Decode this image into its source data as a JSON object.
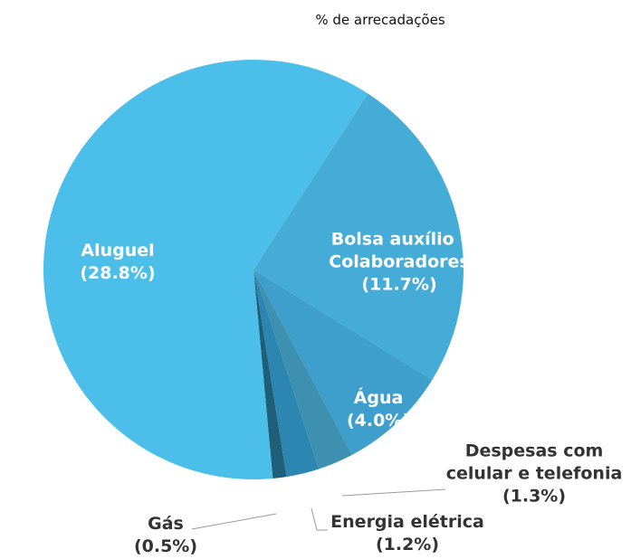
{
  "chart_data": {
    "type": "pie",
    "title": "% de arrecadações",
    "categories": [
      "Aluguel",
      "Bolsa auxílio - Colaboradores",
      "Água",
      "Despesas com celular e telefonia",
      "Energia elétrica",
      "Gás"
    ],
    "values": [
      28.8,
      11.7,
      4.0,
      1.3,
      1.2,
      0.5
    ],
    "value_labels": [
      "(28.8%)",
      "(11.7%)",
      "(4.0%)",
      "(1.3%)",
      "(1.2%)",
      "(0.5%)"
    ],
    "colors": [
      "#4bbfea",
      "#45acd8",
      "#3f9fcc",
      "#3e90b0",
      "#2d86b2",
      "#1f5f7a"
    ]
  }
}
